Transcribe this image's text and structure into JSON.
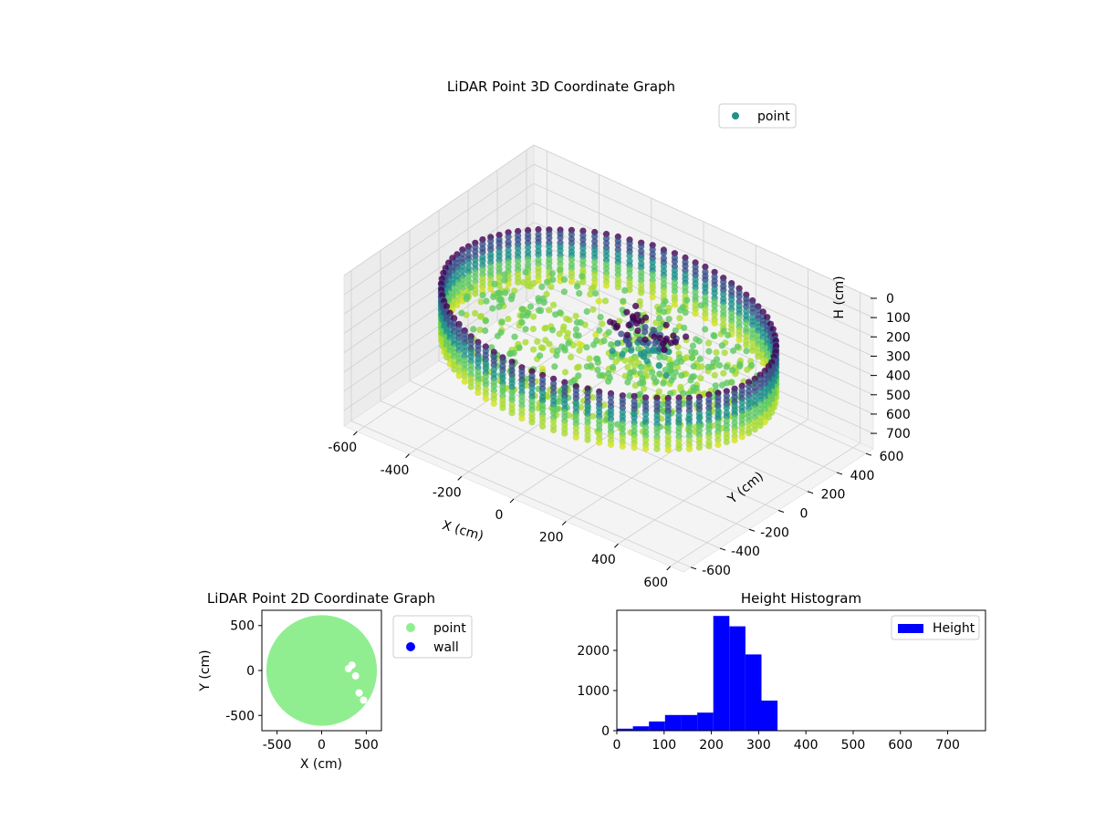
{
  "chart_data": [
    {
      "type": "scatter3d",
      "title": "LiDAR Point 3D Coordinate Graph",
      "xlabel": "X (cm)",
      "ylabel": "Y (cm)",
      "zlabel": "H (cm)",
      "x_ticks": [
        -600,
        -400,
        -200,
        0,
        200,
        400,
        600
      ],
      "y_ticks": [
        -600,
        -400,
        -200,
        0,
        200,
        400,
        600
      ],
      "z_ticks": [
        0,
        100,
        200,
        300,
        400,
        500,
        600,
        700
      ],
      "xlim": [
        -650,
        650
      ],
      "ylim": [
        -650,
        650
      ],
      "zlim": [
        0,
        780
      ],
      "z_inverted": true,
      "colormap": "viridis",
      "legend": {
        "labels": [
          "point"
        ],
        "placement": "top-right"
      },
      "grid": true,
      "series": [
        {
          "name": "point",
          "color": "#21918c",
          "shape": {
            "ring_radius": 560,
            "ring_height_min": 150,
            "ring_height_max": 420,
            "floor_height": 300,
            "cluster_x": 150,
            "cluster_y": 0,
            "cluster_height_min": 100,
            "cluster_height_max": 400
          }
        }
      ]
    },
    {
      "type": "scatter",
      "title": "LiDAR Point 2D Coordinate Graph",
      "xlabel": "X (cm)",
      "ylabel": "Y (cm)",
      "x_ticks": [
        -500,
        0,
        500
      ],
      "y_ticks": [
        -500,
        0,
        500
      ],
      "xlim": [
        -670,
        670
      ],
      "ylim": [
        -670,
        670
      ],
      "legend": {
        "placement": "outside-right"
      },
      "series": [
        {
          "name": "point",
          "color": "#90ee90",
          "shape": {
            "disk_radius": 620,
            "gap_x": [
              250,
              480
            ],
            "gap_y": [
              -380,
              80
            ]
          }
        },
        {
          "name": "wall",
          "color": "#0000ff",
          "points": []
        }
      ]
    },
    {
      "type": "bar",
      "title": "Height Histogram",
      "xlabel": "",
      "ylabel": "",
      "x_ticks": [
        0,
        100,
        200,
        300,
        400,
        500,
        600,
        700
      ],
      "y_ticks": [
        0,
        1000,
        2000
      ],
      "xlim": [
        0,
        780
      ],
      "ylim": [
        0,
        3000
      ],
      "legend": {
        "labels": [
          "Height"
        ],
        "placement": "top-right"
      },
      "series": [
        {
          "name": "Height",
          "color": "#0000ff",
          "bins": [
            0,
            34,
            68,
            102,
            136,
            170,
            204,
            238,
            272,
            306,
            340,
            374,
            408,
            442,
            476,
            510,
            544,
            578,
            612,
            646,
            680,
            714,
            748
          ],
          "counts": [
            50,
            110,
            230,
            390,
            390,
            450,
            2860,
            2600,
            1900,
            750,
            0,
            0,
            0,
            0,
            0,
            0,
            0,
            0,
            0,
            0,
            0,
            0
          ]
        }
      ]
    }
  ]
}
